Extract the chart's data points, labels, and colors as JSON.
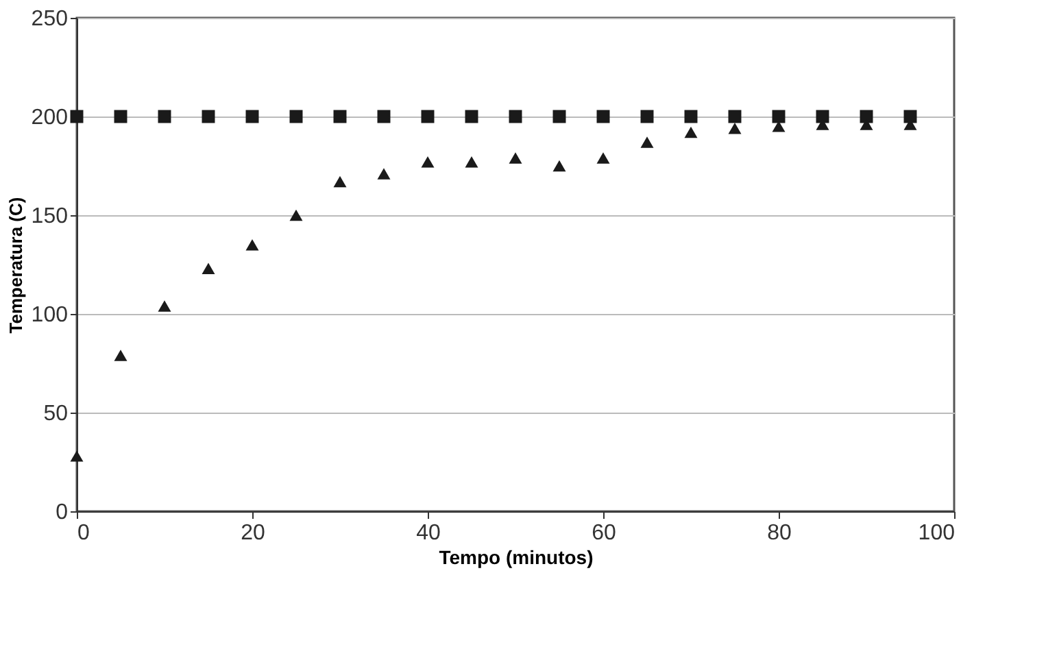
{
  "chart_data": {
    "type": "scatter",
    "xlabel": "Tempo (minutos)",
    "ylabel": "Temperatura (C)",
    "x": [
      0,
      5,
      10,
      15,
      20,
      25,
      30,
      35,
      40,
      45,
      50,
      55,
      60,
      65,
      70,
      75,
      80,
      85,
      90,
      95
    ],
    "series": [
      {
        "color": "#1a1a1a",
        "marker": "square",
        "values": [
          200,
          200,
          200,
          200,
          200,
          200,
          200,
          200,
          200,
          200,
          200,
          200,
          200,
          200,
          200,
          200,
          200,
          200,
          200,
          200
        ]
      },
      {
        "color": "#1a1a1a",
        "marker": "triangle",
        "values": [
          28,
          79,
          104,
          123,
          135,
          150,
          167,
          171,
          177,
          177,
          179,
          175,
          179,
          187,
          192,
          194,
          195,
          196,
          196,
          196
        ]
      }
    ],
    "xlim": [
      0,
      100
    ],
    "xticks": [
      0,
      20,
      40,
      60,
      80,
      100
    ],
    "ylim": [
      0,
      250
    ],
    "yticks": [
      0,
      50,
      100,
      150,
      200,
      250
    ],
    "grid": "y"
  }
}
